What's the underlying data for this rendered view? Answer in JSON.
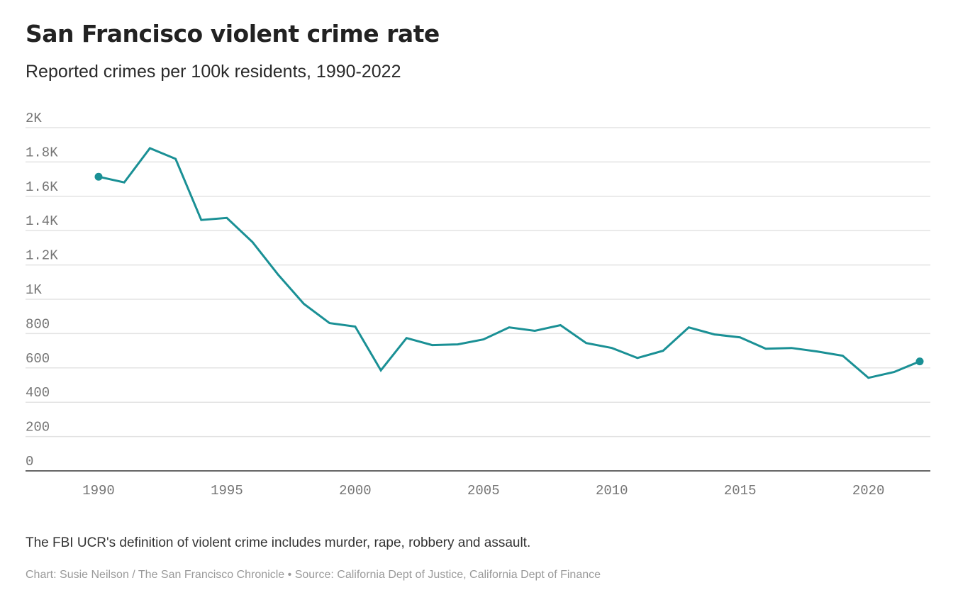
{
  "header": {
    "title": "San Francisco violent crime rate",
    "subtitle": "Reported crimes per 100k residents, 1990-2022"
  },
  "footer": {
    "note": "The FBI UCR's definition of violent crime includes murder, rape, robbery and assault.",
    "credit": "Chart: Susie Neilson / The San Francisco Chronicle • Source: California Dept of Justice, California Dept of Finance"
  },
  "colors": {
    "line": "#1a9095",
    "grid": "#e3e3e3",
    "axis": "#333333",
    "tick_text": "#757575"
  },
  "chart_data": {
    "type": "line",
    "title": "San Francisco violent crime rate",
    "subtitle": "Reported crimes per 100k residents, 1990-2022",
    "xlabel": "",
    "ylabel": "",
    "x": [
      1990,
      1991,
      1992,
      1993,
      1994,
      1995,
      1996,
      1997,
      1998,
      1999,
      2000,
      2001,
      2002,
      2003,
      2004,
      2005,
      2006,
      2007,
      2008,
      2009,
      2010,
      2011,
      2012,
      2013,
      2014,
      2015,
      2016,
      2017,
      2018,
      2019,
      2020,
      2021,
      2022
    ],
    "series": [
      {
        "name": "Violent crime rate",
        "values": [
          1714,
          1681,
          1880,
          1818,
          1462,
          1474,
          1333,
          1143,
          973,
          861,
          841,
          586,
          774,
          733,
          737,
          766,
          836,
          816,
          849,
          745,
          716,
          658,
          700,
          836,
          795,
          778,
          712,
          716,
          696,
          671,
          542,
          576,
          638
        ],
        "markers": "endpoints"
      }
    ],
    "xlim": [
      1988.7,
      2023.2
    ],
    "ylim": [
      0,
      2000
    ],
    "yticks": [
      0,
      200,
      400,
      600,
      800,
      1000,
      1200,
      1400,
      1600,
      1800,
      2000
    ],
    "ytick_labels": [
      "0",
      "200",
      "400",
      "600",
      "800",
      "1K",
      "1.2K",
      "1.4K",
      "1.6K",
      "1.8K",
      "2K"
    ],
    "xticks": [
      1990,
      1995,
      2000,
      2005,
      2010,
      2015,
      2020
    ],
    "xtick_labels": [
      "1990",
      "1995",
      "2000",
      "2005",
      "2010",
      "2015",
      "2020"
    ],
    "grid": true,
    "legend": "none"
  }
}
